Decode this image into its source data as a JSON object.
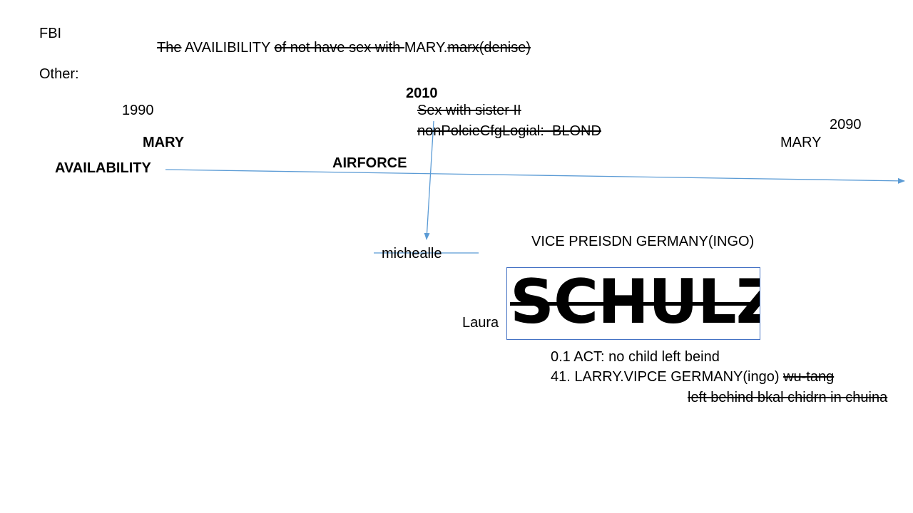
{
  "slide": {
    "fbi": "FBI",
    "headline": {
      "part1": "The",
      "part2": " AVAILIBILITY ",
      "part3": "of not have sex with ",
      "part4": "MARY.",
      "part5": "marx(denise)"
    },
    "other": "Other:",
    "year_2010": "2010",
    "year_1990": "1990",
    "year_2090": "2090",
    "note_sister": "Sex with sister II",
    "note_nonpolicy": "nonPolcieCfgLogial:  BLOND",
    "mary_left": "MARY",
    "mary_right": "MARY",
    "availability": "AVAILABILITY",
    "airforce": "AIRFORCE",
    "michealle": "michealle",
    "vice_president": "VICE PREISDN GERMANY(INGO)",
    "laura": "Laura",
    "schulz": "SCHULZ",
    "act_line": "0.1 ACT: no child left beind",
    "larry_line": "41. LARRY.VIPCE GERMANY(ingo)",
    "wu_tang": "wu-tang",
    "left_behind": "left behind bkal chidrn in chuina"
  },
  "colors": {
    "arrow": "#5b9bd5",
    "box_border": "#4472c4"
  }
}
